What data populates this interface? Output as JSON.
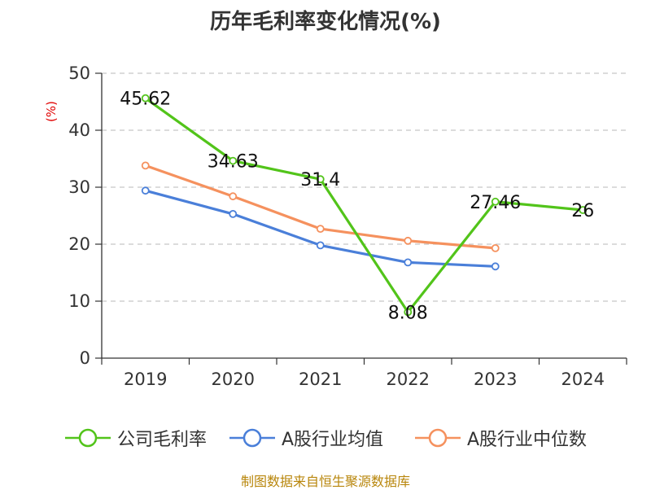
{
  "chart_data": {
    "type": "line",
    "title": "历年毛利率变化情况(%)",
    "ylabel": "(%)",
    "categories": [
      "2019",
      "2020",
      "2021",
      "2022",
      "2023",
      "2024"
    ],
    "ylim": [
      0,
      50
    ],
    "yticks": [
      0,
      10,
      20,
      30,
      40,
      50
    ],
    "grid": true,
    "legend_position": "bottom",
    "series": [
      {
        "name": "公司毛利率",
        "color": "#52c41a",
        "values": [
          45.62,
          34.63,
          31.4,
          8.08,
          27.46,
          26
        ],
        "labels": [
          "45.62",
          "34.63",
          "31.4",
          "8.08",
          "27.46",
          "26"
        ]
      },
      {
        "name": "A股行业均值",
        "color": "#4a7fd9",
        "values": [
          29.4,
          25.3,
          19.8,
          16.8,
          16.1,
          null
        ]
      },
      {
        "name": "A股行业中位数",
        "color": "#f5915e",
        "values": [
          33.8,
          28.4,
          22.7,
          20.6,
          19.3,
          null
        ]
      }
    ]
  },
  "footer": "制图数据来自恒生聚源数据库"
}
